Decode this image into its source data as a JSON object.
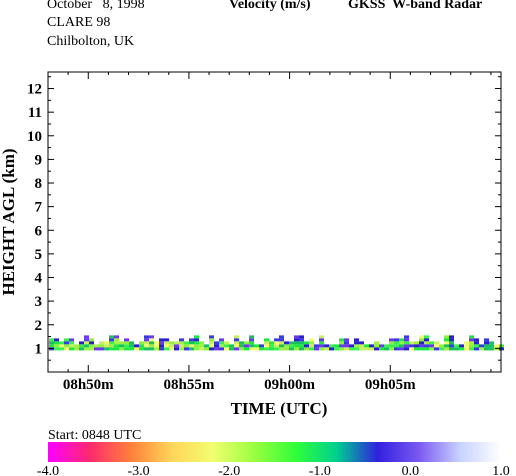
{
  "header": {
    "date": "October   8, 1998",
    "campaign": "CLARE 98",
    "location": "Chilbolton, UK",
    "quantity": "Velocity (m/s)",
    "instrument": "GKSS  W-band Radar"
  },
  "chart_data": {
    "type": "heatmap",
    "xlabel": "TIME (UTC)",
    "ylabel": "HEIGHT AGL (km)",
    "x_ticks": [
      "08h50m",
      "08h55m",
      "09h00m",
      "09h05m"
    ],
    "x_tick_minutes": [
      50,
      55,
      60,
      65
    ],
    "xlim_minutes": [
      48,
      70.5
    ],
    "y_ticks": [
      1,
      2,
      3,
      4,
      5,
      6,
      7,
      8,
      9,
      10,
      11,
      12
    ],
    "ylim": [
      0,
      12.7
    ],
    "layer_km": [
      1.0,
      1.55
    ],
    "start_label": "Start: 0848 UTC",
    "colorbar": {
      "min": -4.0,
      "max": 1.0,
      "tick_values": [
        -4.0,
        -3.0,
        -2.0,
        -1.0,
        0.0,
        1.0
      ],
      "tick_labels": [
        "-4.0",
        "-3.0",
        "-2.0",
        "-1.0",
        "0.0",
        "1.0"
      ],
      "colors": [
        "#ff00ff",
        "#ff2a6e",
        "#ff7f3a",
        "#ffd55a",
        "#f0ff70",
        "#9aff40",
        "#30ff3a",
        "#00d090",
        "#3020e0",
        "#7a58f0",
        "#c8d2ff",
        "#ffffff"
      ]
    }
  }
}
